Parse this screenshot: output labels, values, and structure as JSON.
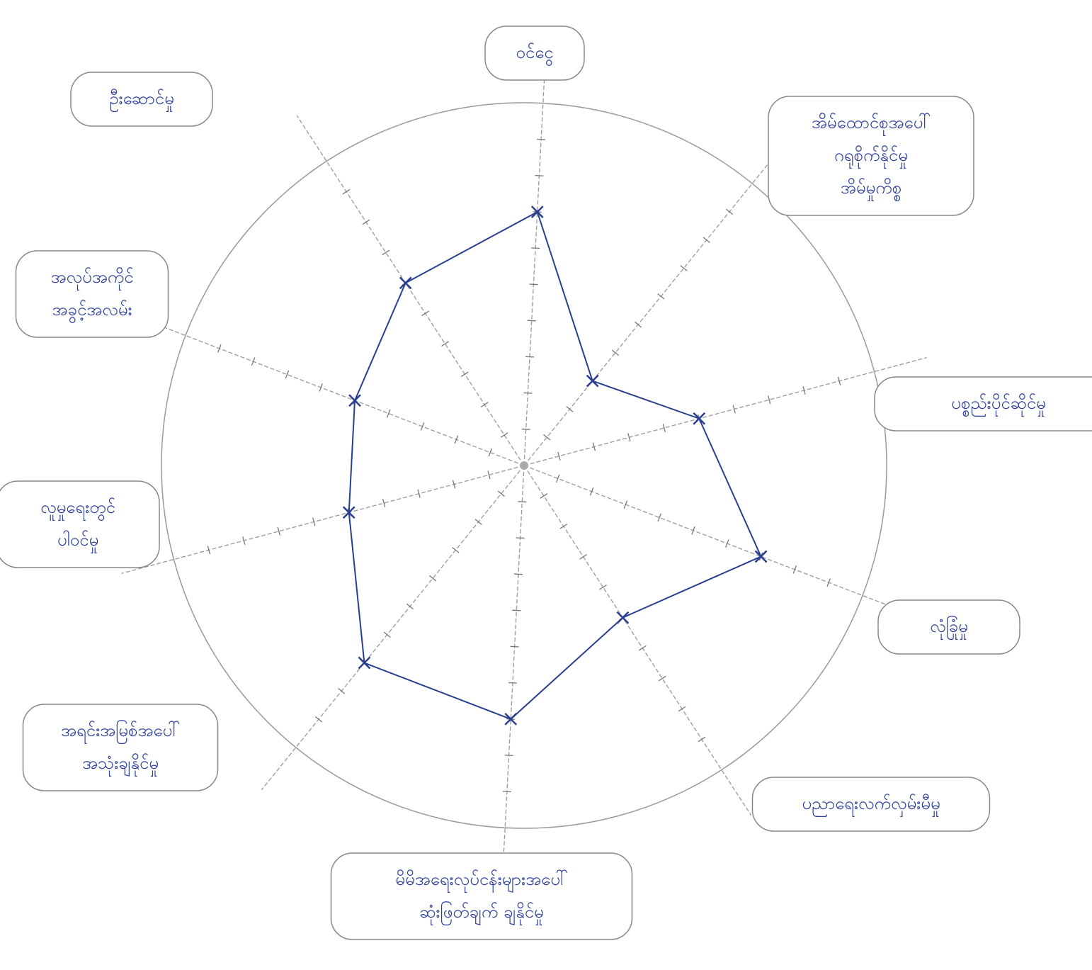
{
  "chart_data": {
    "type": "radar",
    "categories": [
      [
        "ဝင်ငွေ"
      ],
      [
        "အိမ်ထောင်စုအပေါ်",
        "ဂရုစိုက်နိုင်မှု",
        "အိမ်မှုကိစ္စ"
      ],
      [
        "ပစ္စည်းပိုင်ဆိုင်မှု"
      ],
      [
        "လုံခြုံမှု"
      ],
      [
        "ပညာရေးလက်လှမ်းမီမှု"
      ],
      [
        "မိမိအရေးလုပ်ငန်းများအပေါ်",
        "ဆုံးဖြတ်ချက် ချနိုင်မှု"
      ],
      [
        "အရင်းအမြစ်အပေါ်",
        "အသုံးချနိုင်မှု"
      ],
      [
        "လူမှုရေးတွင်",
        "ပါဝင်မှု"
      ],
      [
        "အလုပ်အကိုင်",
        "အခွင့်အလမ်း"
      ],
      [
        "ဦးဆောင်မှု"
      ]
    ],
    "values": [
      7,
      3,
      5,
      7,
      5,
      7,
      7,
      5,
      5,
      6
    ],
    "color": "#2a3f8f",
    "rlim": [
      0,
      10
    ],
    "rticks": [
      1,
      2,
      3,
      4,
      5,
      6,
      7,
      8,
      9
    ]
  }
}
